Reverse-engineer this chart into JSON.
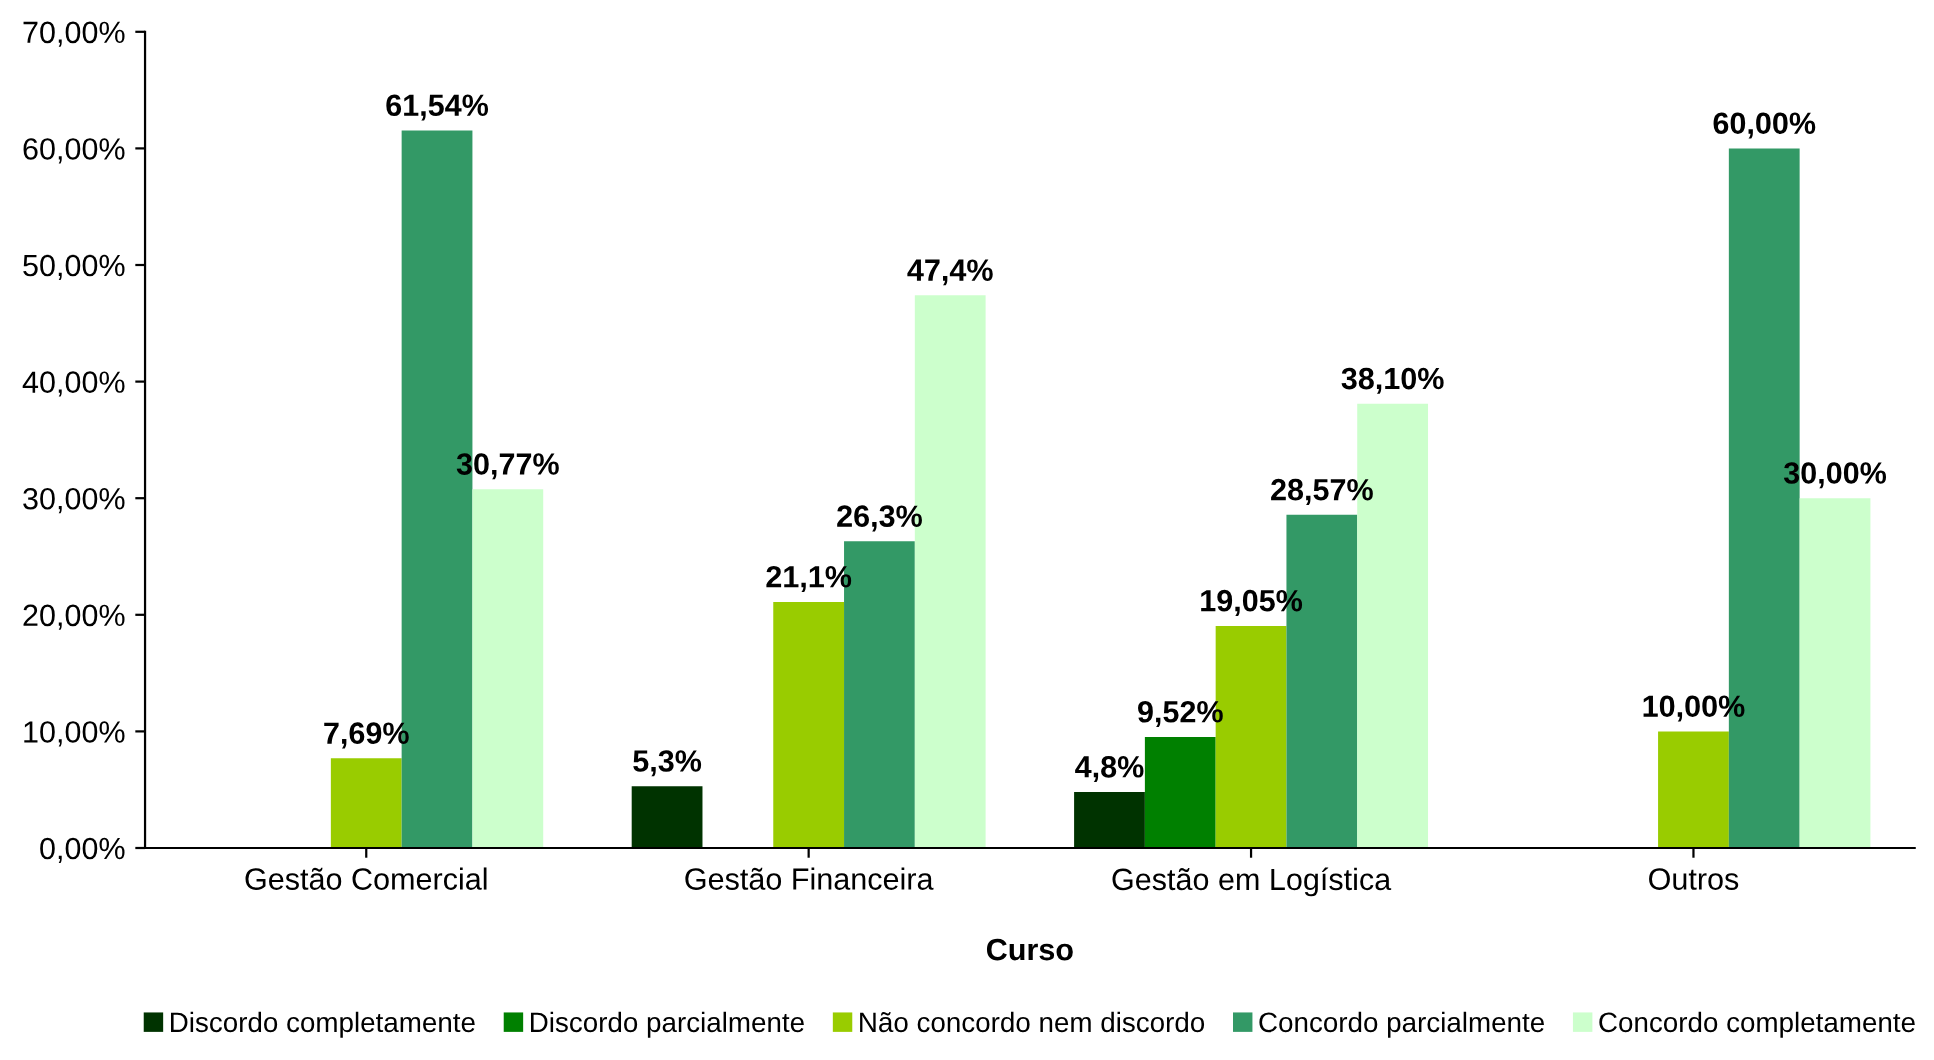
{
  "chart_data": {
    "type": "bar",
    "xlabel": "Curso",
    "categories": [
      "Gestão Comercial",
      "Gestão Financeira",
      "Gestão em Logística",
      "Outros"
    ],
    "series": [
      {
        "name": "Discordo completamente",
        "color": "#003300",
        "values": [
          null,
          5.3,
          4.8,
          null
        ],
        "value_labels": [
          null,
          "5,3%",
          "4,8%",
          null
        ]
      },
      {
        "name": "Discordo parcialmente",
        "color": "#008000",
        "values": [
          null,
          null,
          9.52,
          null
        ],
        "value_labels": [
          null,
          null,
          "9,52%",
          null
        ]
      },
      {
        "name": "Não concordo nem discordo",
        "color": "#99cc00",
        "values": [
          7.69,
          21.1,
          19.05,
          10.0
        ],
        "value_labels": [
          "7,69%",
          "21,1%",
          "19,05%",
          "10,00%"
        ]
      },
      {
        "name": "Concordo parcialmente",
        "color": "#339966",
        "values": [
          61.54,
          26.3,
          28.57,
          60.0
        ],
        "value_labels": [
          "61,54%",
          "26,3%",
          "28,57%",
          "60,00%"
        ]
      },
      {
        "name": "Concordo completamente",
        "color": "#ccffcc",
        "values": [
          30.77,
          47.4,
          38.1,
          30.0
        ],
        "value_labels": [
          "30,77%",
          "47,4%",
          "38,10%",
          "30,00%"
        ]
      }
    ],
    "ylim": [
      0,
      70
    ],
    "yticks": [
      {
        "value": 0,
        "label": "0,00%"
      },
      {
        "value": 10,
        "label": "10,00%"
      },
      {
        "value": 20,
        "label": "20,00%"
      },
      {
        "value": 30,
        "label": "30,00%"
      },
      {
        "value": 40,
        "label": "40,00%"
      },
      {
        "value": 50,
        "label": "50,00%"
      },
      {
        "value": 60,
        "label": "60,00%"
      },
      {
        "value": 70,
        "label": "70,00%"
      }
    ],
    "grid": false,
    "legend": "bottom"
  }
}
